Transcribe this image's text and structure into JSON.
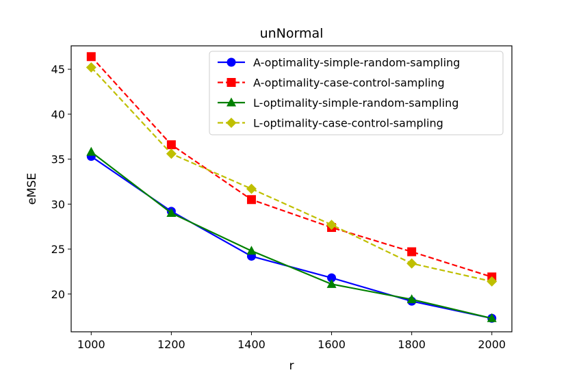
{
  "chart_data": {
    "type": "line",
    "title": "unNormal",
    "xlabel": "r",
    "ylabel": "eMSE",
    "x": [
      1000,
      1200,
      1400,
      1600,
      1800,
      2000
    ],
    "xlim": [
      950,
      2050
    ],
    "ylim": [
      15.8,
      47.6
    ],
    "xticks": [
      1000,
      1200,
      1400,
      1600,
      1800,
      2000
    ],
    "yticks": [
      20,
      25,
      30,
      35,
      40,
      45
    ],
    "legend_position": "top-right",
    "grid": false,
    "series": [
      {
        "name": "A-optimality-simple-random-sampling",
        "values": [
          35.3,
          29.2,
          24.2,
          21.8,
          19.2,
          17.3
        ],
        "color": "#0000ff",
        "marker": "circle",
        "linestyle": "solid"
      },
      {
        "name": "A-optimality-case-control-sampling",
        "values": [
          46.4,
          36.6,
          30.5,
          27.4,
          24.7,
          21.9
        ],
        "color": "#ff0000",
        "marker": "square",
        "linestyle": "dashed"
      },
      {
        "name": "L-optimality-simple-random-sampling",
        "values": [
          35.8,
          29.0,
          24.8,
          21.1,
          19.4,
          17.3
        ],
        "color": "#008000",
        "marker": "triangle",
        "linestyle": "solid"
      },
      {
        "name": "L-optimality-case-control-sampling",
        "values": [
          45.2,
          35.6,
          31.7,
          27.7,
          23.4,
          21.4
        ],
        "color": "#bfbf00",
        "marker": "diamond",
        "linestyle": "dashed"
      }
    ]
  }
}
